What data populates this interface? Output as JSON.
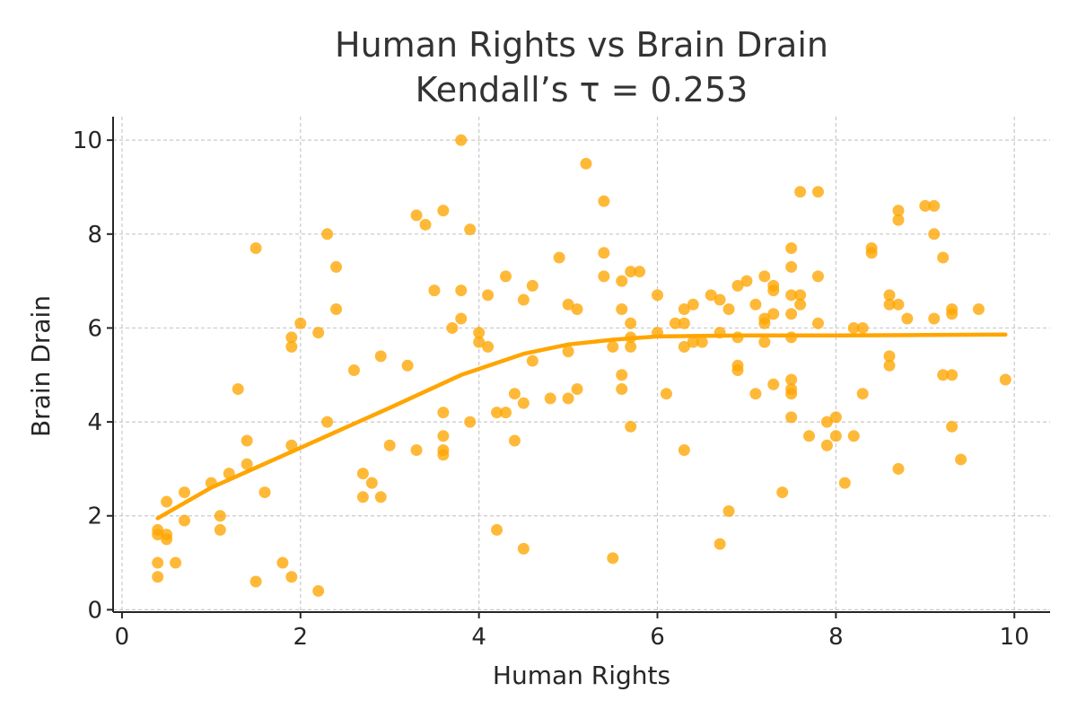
{
  "chart_data": {
    "type": "scatter",
    "title_line1": "Human Rights vs Brain Drain",
    "title_line2": "Kendall’s τ = 0.253",
    "xlabel": "Human Rights",
    "ylabel": "Brain Drain",
    "xlim": [
      -0.1,
      10.4
    ],
    "ylim": [
      -0.05,
      10.5
    ],
    "xticks": [
      0,
      2,
      4,
      6,
      8,
      10
    ],
    "yticks": [
      0,
      2,
      4,
      6,
      8,
      10
    ],
    "xtick_labels": [
      "0",
      "2",
      "4",
      "6",
      "8",
      "10"
    ],
    "ytick_labels": [
      "0",
      "2",
      "4",
      "6",
      "8",
      "10"
    ],
    "grid": true,
    "color": "#FFA500",
    "points": [
      [
        0.4,
        1.7
      ],
      [
        0.4,
        1.6
      ],
      [
        0.4,
        1.0
      ],
      [
        0.4,
        0.7
      ],
      [
        0.5,
        2.3
      ],
      [
        0.5,
        1.6
      ],
      [
        0.5,
        1.5
      ],
      [
        0.6,
        1.0
      ],
      [
        0.7,
        2.5
      ],
      [
        0.7,
        1.9
      ],
      [
        1.0,
        2.7
      ],
      [
        1.1,
        2.0
      ],
      [
        1.1,
        1.7
      ],
      [
        1.2,
        2.9
      ],
      [
        1.3,
        4.7
      ],
      [
        1.4,
        3.6
      ],
      [
        1.4,
        3.1
      ],
      [
        1.5,
        7.7
      ],
      [
        1.5,
        0.6
      ],
      [
        1.6,
        2.5
      ],
      [
        1.8,
        1.0
      ],
      [
        1.9,
        5.8
      ],
      [
        1.9,
        5.6
      ],
      [
        1.9,
        3.5
      ],
      [
        1.9,
        0.7
      ],
      [
        2.0,
        6.1
      ],
      [
        2.2,
        5.9
      ],
      [
        2.2,
        0.4
      ],
      [
        2.3,
        8.0
      ],
      [
        2.3,
        4.0
      ],
      [
        2.4,
        7.3
      ],
      [
        2.4,
        6.4
      ],
      [
        2.6,
        5.1
      ],
      [
        2.7,
        2.9
      ],
      [
        2.7,
        2.4
      ],
      [
        2.8,
        2.7
      ],
      [
        2.9,
        5.4
      ],
      [
        2.9,
        2.4
      ],
      [
        3.0,
        3.5
      ],
      [
        3.2,
        5.2
      ],
      [
        3.3,
        8.4
      ],
      [
        3.3,
        3.4
      ],
      [
        3.4,
        8.2
      ],
      [
        3.5,
        6.8
      ],
      [
        3.6,
        8.5
      ],
      [
        3.6,
        4.2
      ],
      [
        3.6,
        3.7
      ],
      [
        3.6,
        3.4
      ],
      [
        3.6,
        3.3
      ],
      [
        3.7,
        6.0
      ],
      [
        3.8,
        10.0
      ],
      [
        3.8,
        6.8
      ],
      [
        3.8,
        6.2
      ],
      [
        3.9,
        8.1
      ],
      [
        3.9,
        4.0
      ],
      [
        4.0,
        5.9
      ],
      [
        4.0,
        5.7
      ],
      [
        4.1,
        6.7
      ],
      [
        4.1,
        5.6
      ],
      [
        4.2,
        4.2
      ],
      [
        4.2,
        1.7
      ],
      [
        4.3,
        7.1
      ],
      [
        4.3,
        4.2
      ],
      [
        4.4,
        4.6
      ],
      [
        4.4,
        3.6
      ],
      [
        4.5,
        6.6
      ],
      [
        4.5,
        4.4
      ],
      [
        4.5,
        1.3
      ],
      [
        4.6,
        6.9
      ],
      [
        4.6,
        5.3
      ],
      [
        4.8,
        4.5
      ],
      [
        4.9,
        7.5
      ],
      [
        5.0,
        6.5
      ],
      [
        5.0,
        5.5
      ],
      [
        5.0,
        4.5
      ],
      [
        5.1,
        6.4
      ],
      [
        5.1,
        4.7
      ],
      [
        5.2,
        9.5
      ],
      [
        5.4,
        8.7
      ],
      [
        5.4,
        7.6
      ],
      [
        5.4,
        7.1
      ],
      [
        5.5,
        5.6
      ],
      [
        5.5,
        1.1
      ],
      [
        5.6,
        7.0
      ],
      [
        5.6,
        6.4
      ],
      [
        5.6,
        5.0
      ],
      [
        5.6,
        4.7
      ],
      [
        5.7,
        7.2
      ],
      [
        5.7,
        6.1
      ],
      [
        5.7,
        5.8
      ],
      [
        5.7,
        5.6
      ],
      [
        5.7,
        3.9
      ],
      [
        5.8,
        7.2
      ],
      [
        6.0,
        6.7
      ],
      [
        6.0,
        5.9
      ],
      [
        6.1,
        4.6
      ],
      [
        6.2,
        6.1
      ],
      [
        6.3,
        6.4
      ],
      [
        6.3,
        6.1
      ],
      [
        6.3,
        5.6
      ],
      [
        6.3,
        3.4
      ],
      [
        6.4,
        6.5
      ],
      [
        6.4,
        5.7
      ],
      [
        6.5,
        5.7
      ],
      [
        6.6,
        6.7
      ],
      [
        6.7,
        6.6
      ],
      [
        6.7,
        5.9
      ],
      [
        6.7,
        1.4
      ],
      [
        6.8,
        6.4
      ],
      [
        6.8,
        2.1
      ],
      [
        6.9,
        6.9
      ],
      [
        6.9,
        5.8
      ],
      [
        6.9,
        5.2
      ],
      [
        6.9,
        5.1
      ],
      [
        7.0,
        7.0
      ],
      [
        7.1,
        6.5
      ],
      [
        7.1,
        4.6
      ],
      [
        7.2,
        7.1
      ],
      [
        7.2,
        6.2
      ],
      [
        7.2,
        6.1
      ],
      [
        7.2,
        5.7
      ],
      [
        7.3,
        6.9
      ],
      [
        7.3,
        6.8
      ],
      [
        7.3,
        6.3
      ],
      [
        7.3,
        4.8
      ],
      [
        7.4,
        2.5
      ],
      [
        7.5,
        7.7
      ],
      [
        7.5,
        7.3
      ],
      [
        7.5,
        6.7
      ],
      [
        7.5,
        6.3
      ],
      [
        7.5,
        5.8
      ],
      [
        7.5,
        4.9
      ],
      [
        7.5,
        4.7
      ],
      [
        7.5,
        4.6
      ],
      [
        7.5,
        4.1
      ],
      [
        7.6,
        8.9
      ],
      [
        7.6,
        6.7
      ],
      [
        7.6,
        6.5
      ],
      [
        7.7,
        3.7
      ],
      [
        7.8,
        8.9
      ],
      [
        7.8,
        7.1
      ],
      [
        7.8,
        6.1
      ],
      [
        7.9,
        4.0
      ],
      [
        7.9,
        3.5
      ],
      [
        8.0,
        4.1
      ],
      [
        8.0,
        3.7
      ],
      [
        8.1,
        2.7
      ],
      [
        8.2,
        6.0
      ],
      [
        8.2,
        3.7
      ],
      [
        8.3,
        6.0
      ],
      [
        8.3,
        4.6
      ],
      [
        8.4,
        7.7
      ],
      [
        8.4,
        7.6
      ],
      [
        8.6,
        6.7
      ],
      [
        8.6,
        6.5
      ],
      [
        8.6,
        5.4
      ],
      [
        8.6,
        5.2
      ],
      [
        8.7,
        8.5
      ],
      [
        8.7,
        8.3
      ],
      [
        8.7,
        6.5
      ],
      [
        8.7,
        3.0
      ],
      [
        8.8,
        6.2
      ],
      [
        9.0,
        8.6
      ],
      [
        9.1,
        8.6
      ],
      [
        9.1,
        8.0
      ],
      [
        9.1,
        6.2
      ],
      [
        9.2,
        7.5
      ],
      [
        9.2,
        5.0
      ],
      [
        9.3,
        6.4
      ],
      [
        9.3,
        6.3
      ],
      [
        9.3,
        5.0
      ],
      [
        9.3,
        3.9
      ],
      [
        9.4,
        3.2
      ],
      [
        9.6,
        6.4
      ],
      [
        9.9,
        4.9
      ]
    ],
    "trend": {
      "name": "",
      "x": [
        0.4,
        1.0,
        2.0,
        3.0,
        3.8,
        4.5,
        5.0,
        5.5,
        6.0,
        6.5,
        7.0,
        8.0,
        9.0,
        9.9
      ],
      "y": [
        1.95,
        2.6,
        3.45,
        4.3,
        5.0,
        5.45,
        5.65,
        5.75,
        5.82,
        5.83,
        5.84,
        5.84,
        5.85,
        5.86
      ]
    }
  }
}
